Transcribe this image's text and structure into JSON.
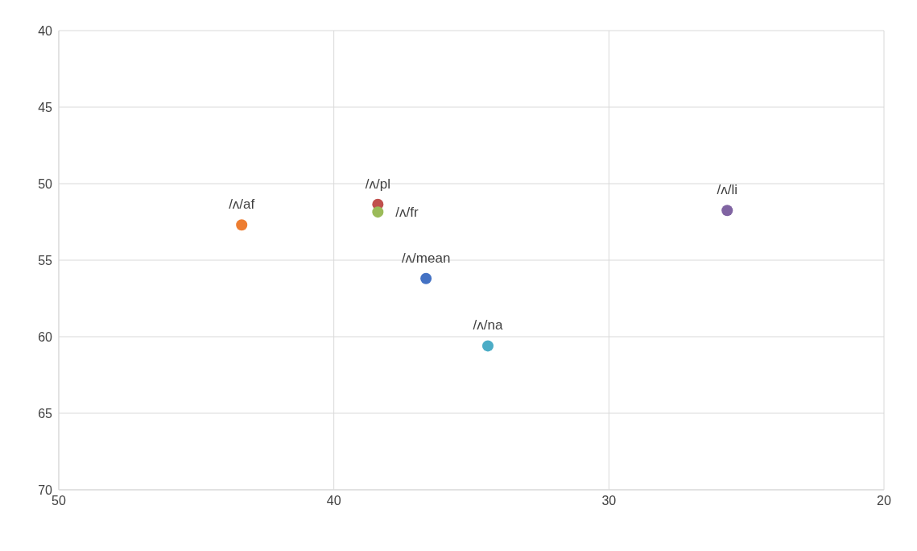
{
  "chart_data": {
    "type": "scatter",
    "xlim": [
      50,
      20
    ],
    "xticks": [
      50,
      40,
      30,
      20
    ],
    "ylim": [
      70,
      40
    ],
    "yticks": [
      40,
      45,
      50,
      55,
      60,
      65,
      70
    ],
    "grid": true,
    "marker": "circle",
    "legend": false,
    "series": [
      {
        "name": "/ʌ/mean",
        "color": "#4472c4",
        "x": [
          36.65
        ],
        "values": [
          56.2
        ]
      },
      {
        "name": "/ʌ/af",
        "color": "#ed7d31",
        "x": [
          43.35
        ],
        "values": [
          52.7
        ]
      },
      {
        "name": "/ʌ/pl",
        "color": "#c0504d",
        "x": [
          38.4
        ],
        "values": [
          51.35
        ]
      },
      {
        "name": "/ʌ/fr",
        "color": "#9bbb59",
        "x": [
          38.4
        ],
        "values": [
          51.85
        ]
      },
      {
        "name": "/ʌ/li",
        "color": "#8064a2",
        "x": [
          25.7
        ],
        "values": [
          51.75
        ]
      },
      {
        "name": "/ʌ/na",
        "color": "#4bacc6",
        "x": [
          34.4
        ],
        "values": [
          60.6
        ]
      }
    ]
  }
}
